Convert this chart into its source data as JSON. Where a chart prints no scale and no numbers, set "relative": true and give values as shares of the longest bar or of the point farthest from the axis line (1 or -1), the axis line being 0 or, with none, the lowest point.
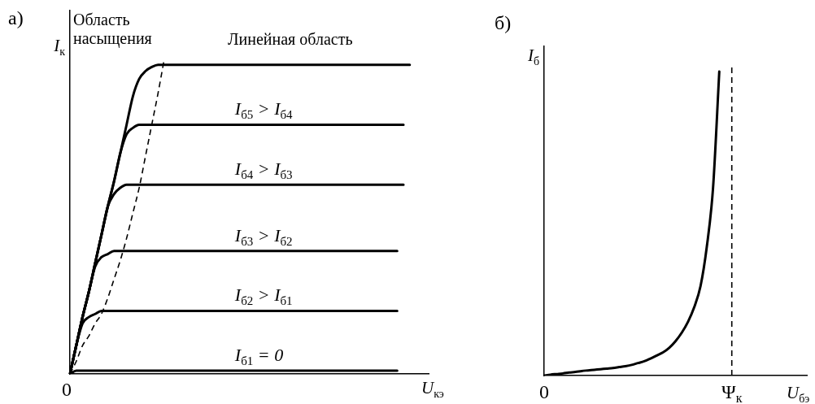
{
  "chart_data": [
    {
      "type": "line",
      "title": "а)",
      "xlabel": "U$_{кэ}$",
      "ylabel": "I$_{к}$",
      "annotations": [
        "Область насыщения",
        "Линейная область",
        "0"
      ],
      "relative": true,
      "legend": false,
      "grid": false,
      "categories": [
        null,
        null,
        null,
        null,
        null,
        null,
        null,
        null,
        null,
        null,
        null,
        null,
        null,
        null,
        null,
        null,
        null,
        null,
        null,
        null,
        null,
        null,
        null,
        null,
        null,
        null,
        null,
        null,
        null,
        null,
        null,
        null,
        null,
        null,
        null,
        null,
        null,
        null,
        null,
        null,
        null,
        null,
        null,
        null,
        null,
        null,
        null,
        null,
        null,
        null,
        null,
        null,
        null,
        null,
        null,
        null,
        null,
        null
      ],
      "series": [
        {
          "color": "#000000",
          "values": [
            0,
            0.09,
            0.18,
            0.26,
            0.35,
            0.44,
            0.53,
            0.61,
            0.7,
            0.79,
            0.88,
            0.935,
            0.96,
            0.973,
            0.98,
            0.98,
            0.98,
            0.98,
            0.98,
            0.98,
            0.98,
            0.98,
            0.98,
            0.98,
            0.98,
            0.98,
            0.98,
            0.98,
            0.98,
            0.98,
            0.98,
            0.98,
            0.98,
            0.98,
            0.98,
            0.98,
            0.98,
            0.98,
            0.98,
            0.98,
            0.98,
            0.98,
            0.98,
            0.98,
            0.98,
            0.98,
            0.98,
            0.98,
            0.98,
            0.98,
            0.98,
            0.98,
            0.98,
            0.98,
            0.98,
            null,
            null,
            null
          ]
        },
        {
          "name": "I$_{б5}$ > I$_{б4}$",
          "color": "#000000",
          "values": [
            0,
            0.09,
            0.18,
            0.26,
            0.35,
            0.44,
            0.53,
            0.61,
            0.7,
            0.76,
            0.78,
            0.79,
            0.79,
            0.79,
            0.79,
            0.79,
            0.79,
            0.79,
            0.79,
            0.79,
            0.79,
            0.79,
            0.79,
            0.79,
            0.79,
            0.79,
            0.79,
            0.79,
            0.79,
            0.79,
            0.79,
            0.79,
            0.79,
            0.79,
            0.79,
            0.79,
            0.79,
            0.79,
            0.79,
            0.79,
            0.79,
            0.79,
            0.79,
            0.79,
            0.79,
            0.79,
            0.79,
            0.79,
            0.79,
            0.79,
            0.79,
            0.79,
            0.79,
            0.79,
            null,
            null,
            null,
            null
          ]
        },
        {
          "name": "I$_{б4}$ > I$_{б3}$",
          "color": "#000000",
          "values": [
            0,
            0.09,
            0.18,
            0.26,
            0.35,
            0.44,
            0.53,
            0.57,
            0.59,
            0.6,
            0.6,
            0.6,
            0.6,
            0.6,
            0.6,
            0.6,
            0.6,
            0.6,
            0.6,
            0.6,
            0.6,
            0.6,
            0.6,
            0.6,
            0.6,
            0.6,
            0.6,
            0.6,
            0.6,
            0.6,
            0.6,
            0.6,
            0.6,
            0.6,
            0.6,
            0.6,
            0.6,
            0.6,
            0.6,
            0.6,
            0.6,
            0.6,
            0.6,
            0.6,
            0.6,
            0.6,
            0.6,
            0.6,
            0.6,
            0.6,
            0.6,
            0.6,
            0.6,
            0.6,
            null,
            null,
            null,
            null
          ]
        },
        {
          "name": "I$_{б3}$ > I$_{б2}$",
          "color": "#000000",
          "values": [
            0,
            0.09,
            0.18,
            0.26,
            0.34,
            0.37,
            0.38,
            0.39,
            0.39,
            0.39,
            0.39,
            0.39,
            0.39,
            0.39,
            0.39,
            0.39,
            0.39,
            0.39,
            0.39,
            0.39,
            0.39,
            0.39,
            0.39,
            0.39,
            0.39,
            0.39,
            0.39,
            0.39,
            0.39,
            0.39,
            0.39,
            0.39,
            0.39,
            0.39,
            0.39,
            0.39,
            0.39,
            0.39,
            0.39,
            0.39,
            0.39,
            0.39,
            0.39,
            0.39,
            0.39,
            0.39,
            0.39,
            0.39,
            0.39,
            0.39,
            0.39,
            0.39,
            0.39,
            null,
            null,
            null,
            null,
            null
          ]
        },
        {
          "name": "I$_{б2}$ > I$_{б1}$",
          "color": "#000000",
          "values": [
            0,
            0.09,
            0.16,
            0.18,
            0.19,
            0.2,
            0.2,
            0.2,
            0.2,
            0.2,
            0.2,
            0.2,
            0.2,
            0.2,
            0.2,
            0.2,
            0.2,
            0.2,
            0.2,
            0.2,
            0.2,
            0.2,
            0.2,
            0.2,
            0.2,
            0.2,
            0.2,
            0.2,
            0.2,
            0.2,
            0.2,
            0.2,
            0.2,
            0.2,
            0.2,
            0.2,
            0.2,
            0.2,
            0.2,
            0.2,
            0.2,
            0.2,
            0.2,
            0.2,
            0.2,
            0.2,
            0.2,
            0.2,
            0.2,
            0.2,
            0.2,
            0.2,
            0.2,
            null,
            null,
            null,
            null,
            null
          ]
        },
        {
          "name": "I$_{б1}$ = 0",
          "color": "#000000",
          "values": [
            0,
            0.01,
            0.01,
            0.01,
            0.01,
            0.01,
            0.01,
            0.01,
            0.01,
            0.01,
            0.01,
            0.01,
            0.01,
            0.01,
            0.01,
            0.01,
            0.01,
            0.01,
            0.01,
            0.01,
            0.01,
            0.01,
            0.01,
            0.01,
            0.01,
            0.01,
            0.01,
            0.01,
            0.01,
            0.01,
            0.01,
            0.01,
            0.01,
            0.01,
            0.01,
            0.01,
            0.01,
            0.01,
            0.01,
            0.01,
            0.01,
            0.01,
            0.01,
            0.01,
            0.01,
            0.01,
            0.01,
            0.01,
            0.01,
            0.01,
            0.01,
            0.01,
            0.01,
            null,
            null,
            null,
            null,
            null
          ]
        },
        {
          "color": "#000000",
          "line_style": "dashed",
          "values": [
            0,
            0.04,
            0.09,
            0.12,
            0.16,
            0.19,
            0.24,
            0.3,
            0.36,
            0.43,
            0.51,
            0.59,
            0.69,
            0.79,
            0.89,
            1,
            null,
            null,
            null,
            null,
            null,
            null,
            null,
            null,
            null,
            null,
            null,
            null,
            null,
            null,
            null,
            null,
            null,
            null,
            null,
            null,
            null,
            null,
            null,
            null,
            null,
            null,
            null,
            null,
            null,
            null,
            null,
            null,
            null,
            null,
            null,
            null,
            null,
            null,
            null,
            null,
            null,
            null
          ]
        }
      ]
    },
    {
      "type": "line",
      "title": "б)",
      "xlabel": "U$_{бэ}$",
      "ylabel": "I$_{б}$",
      "relative": true,
      "legend": false,
      "grid": false,
      "categories": [
        "0",
        null,
        null,
        null,
        null,
        null,
        null,
        null,
        null,
        null,
        null,
        null,
        null,
        null,
        null,
        null,
        null,
        null,
        null,
        null,
        null,
        null,
        null,
        null,
        null,
        null,
        null,
        null,
        null,
        null,
        "Ψ$_{к}$",
        null,
        null,
        null,
        null,
        null,
        null,
        null,
        null,
        null,
        null,
        null,
        null
      ],
      "ref_lines": [
        {
          "axis": "x",
          "value": "Ψ$_{к}$",
          "color": "#000000",
          "line_style": "dashed"
        }
      ],
      "series": [
        {
          "color": "#000000",
          "values": [
            0,
            0.003,
            0.005,
            0.007,
            0.01,
            0.012,
            0.015,
            0.017,
            0.019,
            0.021,
            0.023,
            0.025,
            0.028,
            0.031,
            0.035,
            0.041,
            0.047,
            0.056,
            0.066,
            0.076,
            0.091,
            0.113,
            0.141,
            0.177,
            0.225,
            0.294,
            0.423,
            0.617,
            1,
            null,
            null,
            null,
            null,
            null,
            null,
            null,
            null,
            null,
            null,
            null,
            null,
            null,
            null
          ]
        }
      ]
    }
  ]
}
